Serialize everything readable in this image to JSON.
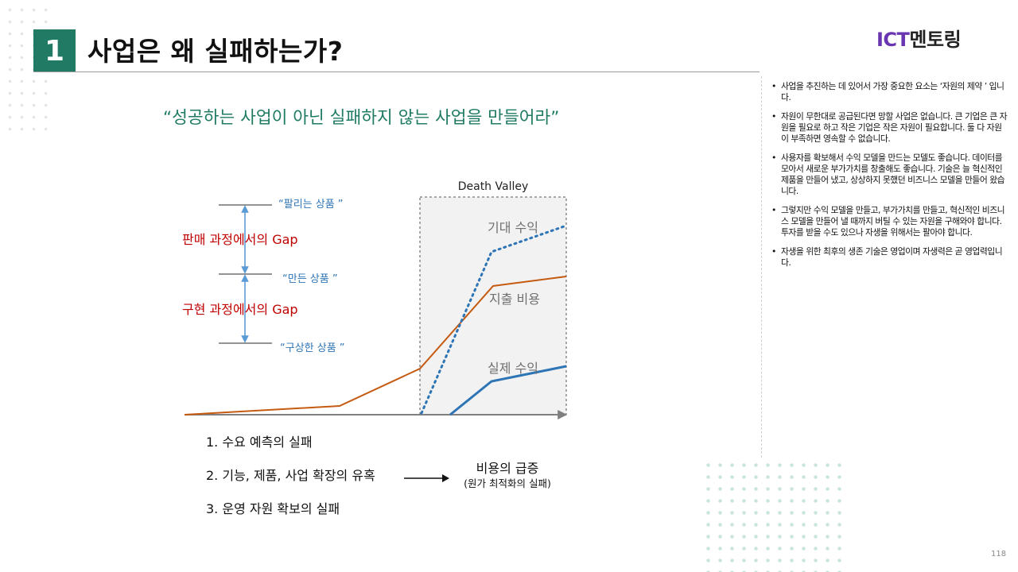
{
  "header": {
    "section_number": "1",
    "title": "사업은 왜 실패하는가?",
    "logo_ict": "ICT",
    "logo_rest": "멘토링"
  },
  "subtitle": "“성공하는 사업이 아닌 실패하지 않는 사업을 만들어라”",
  "diagram": {
    "death_valley_label": "Death Valley",
    "gap_labels": [
      "판매 과정에서의 Gap",
      "구현 과정에서의 Gap"
    ],
    "product_labels": [
      "“팔리는 상품 ”",
      "“만든 상품 ”",
      "“구상한 상품 ”"
    ],
    "curve_labels": {
      "expected": "기대 수익",
      "spending": "지출 비용",
      "actual": "실제 수익"
    },
    "colors": {
      "spending": "#c55a11",
      "expected": "#2e75b6",
      "actual": "#2e75b6",
      "gap_text": "#c00000",
      "product_text": "#2e75b6",
      "accent": "#217a63"
    }
  },
  "reasons": [
    "1. 수요 예측의 실패",
    "2. 기능, 제품, 사업 확장의 유혹",
    "3. 운영 자원 확보의 실패"
  ],
  "cost_result": {
    "title": "비용의 급증",
    "subtitle": "(원가 최적화의 실패)"
  },
  "bullets": [
    "사업을 추진하는 데 있어서 가장 중요한 요소는 ‘자원의 제약 ’ 입니다.",
    "자원이 무한대로 공급된다면 망할 사업은 없습니다. 큰 기업은 큰 자원을 필요로 하고 작은 기업은 작은 자원이 필요합니다. 둘 다 자원이 부족하면 영속할 수 없습니다.",
    "사용자를 확보해서 수익 모델을 만드는 모델도 좋습니다. 데이터를 모아서 새로운 부가가치를 창출해도 좋습니다. 기술은 늘 혁신적인 제품을 만들어 냈고, 상상하지 못했던 비즈니스 모델을 만들어 왔습니다.",
    "그렇지만 수익 모델을 만들고, 부가가치를 만들고, 혁신적인 비즈니스 모델을 만들어 낼 때까지 버틸 수 있는 자원을 구해와야 합니다. 투자를 받을 수도 있으나 자생을 위해서는 팔아야 합니다.",
    "자생을 위한 최후의 생존 기술은 영업이며 자생력은 곧 영업력입니다."
  ],
  "page_number": "118"
}
